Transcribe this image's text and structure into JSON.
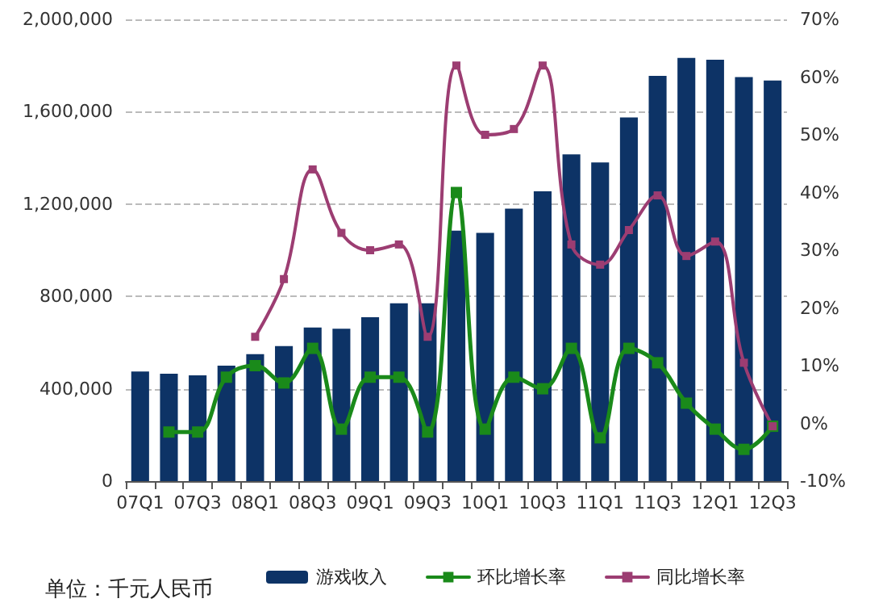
{
  "chart_data": {
    "type": "bar",
    "categories": [
      "07Q1",
      null,
      "07Q3",
      null,
      "08Q1",
      null,
      "08Q3",
      null,
      "09Q1",
      null,
      "09Q3",
      null,
      "10Q1",
      null,
      "10Q3",
      null,
      "11Q1",
      null,
      "11Q3",
      null,
      "12Q1",
      null,
      "12Q3"
    ],
    "series": [
      {
        "name": "游戏收入",
        "color": "#0d3366",
        "values": [
          475000,
          465000,
          458000,
          500000,
          550000,
          585000,
          665000,
          660000,
          710000,
          770000,
          770000,
          1085000,
          1075000,
          1180000,
          1255000,
          1415000,
          1380000,
          1575000,
          1755000,
          1833000,
          1825000,
          1750000,
          1735000
        ]
      },
      {
        "name": "环比增长率",
        "type": "line",
        "axis": "y2",
        "color": "#1a8a1a",
        "values": [
          null,
          -1.5,
          -1.5,
          8,
          10,
          7,
          13,
          -1,
          8,
          8,
          -1.5,
          40,
          -1,
          8,
          6,
          13,
          -2.5,
          13,
          10.5,
          3.5,
          -1,
          -4.5,
          -0.5
        ]
      },
      {
        "name": "同比增长率",
        "type": "line",
        "axis": "y2",
        "color": "#9c3d72",
        "values": [
          null,
          null,
          null,
          null,
          15,
          25,
          44,
          33,
          30,
          31,
          15,
          62,
          50,
          51,
          62,
          31,
          27.5,
          33.5,
          39.5,
          29,
          31.5,
          10.5,
          -0.5
        ]
      }
    ],
    "ylim": [
      0,
      2000000
    ],
    "yticks": [
      0,
      {
        "value": 400000,
        "label": "400,000"
      },
      {
        "value": 800000,
        "label": "800,000"
      },
      {
        "value": 1200000,
        "label": "1,200,000"
      },
      {
        "value": 1600000,
        "label": "1,600,000"
      },
      {
        "value": 2000000,
        "label": "2,000,000"
      }
    ],
    "y2lim": [
      -10,
      70
    ],
    "y2ticks": [
      {
        "value": -10,
        "label": "-10%"
      },
      {
        "value": 0,
        "label": "0%"
      },
      {
        "value": 10,
        "label": "10%"
      },
      {
        "value": 20,
        "label": "20%"
      },
      {
        "value": 30,
        "label": "30%"
      },
      {
        "value": 40,
        "label": "40%"
      },
      {
        "value": 50,
        "label": "50%"
      },
      {
        "value": 60,
        "label": "60%"
      },
      {
        "value": 70,
        "label": "70%"
      }
    ],
    "grid": "y",
    "legend": "bottom",
    "marker": "square",
    "line_style": "solid",
    "annotations": [
      "单位：千元人民币"
    ]
  }
}
